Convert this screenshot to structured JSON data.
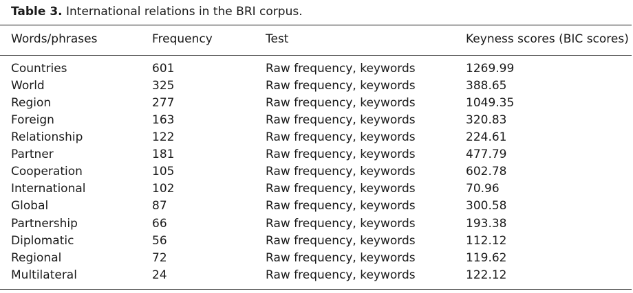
{
  "caption": {
    "label": "Table 3.",
    "text": "International relations in the BRI corpus."
  },
  "table": {
    "headers": [
      "Words/phrases",
      "Frequency",
      "Test",
      "Keyness scores (BIC scores)"
    ],
    "rows": [
      [
        "Countries",
        "601",
        "Raw frequency, keywords",
        "1269.99"
      ],
      [
        "World",
        "325",
        "Raw frequency, keywords",
        "388.65"
      ],
      [
        "Region",
        "277",
        "Raw frequency, keywords",
        "1049.35"
      ],
      [
        "Foreign",
        "163",
        "Raw frequency, keywords",
        "320.83"
      ],
      [
        "Relationship",
        "122",
        "Raw frequency, keywords",
        "224.61"
      ],
      [
        "Partner",
        "181",
        "Raw frequency, keywords",
        "477.79"
      ],
      [
        "Cooperation",
        "105",
        "Raw frequency, keywords",
        "602.78"
      ],
      [
        "International",
        "102",
        "Raw frequency, keywords",
        "70.96"
      ],
      [
        "Global",
        "87",
        "Raw frequency, keywords",
        "300.58"
      ],
      [
        "Partnership",
        "66",
        "Raw frequency, keywords",
        "193.38"
      ],
      [
        "Diplomatic",
        "56",
        "Raw frequency, keywords",
        "112.12"
      ],
      [
        "Regional",
        "72",
        "Raw frequency, keywords",
        "119.62"
      ],
      [
        "Multilateral",
        "24",
        "Raw frequency, keywords",
        "122.12"
      ]
    ]
  }
}
